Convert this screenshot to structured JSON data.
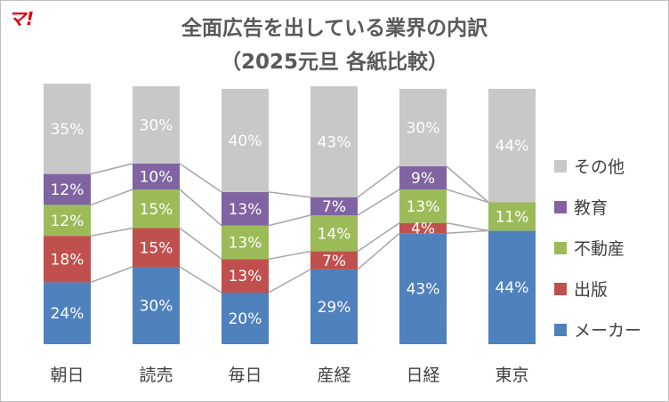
{
  "brand": {
    "logo_text": "マ!",
    "logo_color": "#e60012"
  },
  "chart_data": {
    "type": "bar",
    "stacked": true,
    "percent_stacked": true,
    "title": "全面広告を出している業界の内訳",
    "subtitle": "（2025元旦 各紙比較）",
    "categories": [
      "朝日",
      "読売",
      "毎日",
      "産経",
      "日経",
      "東京"
    ],
    "series": [
      {
        "name": "メーカー",
        "color": "#4f81bd",
        "values": [
          24,
          30,
          20,
          29,
          43,
          44
        ]
      },
      {
        "name": "出版",
        "color": "#c0504d",
        "values": [
          18,
          15,
          13,
          7,
          4,
          0
        ]
      },
      {
        "name": "不動産",
        "color": "#9bbb59",
        "values": [
          12,
          15,
          13,
          14,
          13,
          11
        ]
      },
      {
        "name": "教育",
        "color": "#8064a2",
        "values": [
          12,
          10,
          13,
          7,
          9,
          0
        ]
      },
      {
        "name": "その他",
        "color": "#c8c8c8",
        "values": [
          35,
          30,
          40,
          43,
          30,
          44
        ]
      }
    ],
    "value_suffix": "%",
    "ylim": [
      0,
      100
    ],
    "series_lines": true,
    "legend_position": "right",
    "grid": false
  }
}
